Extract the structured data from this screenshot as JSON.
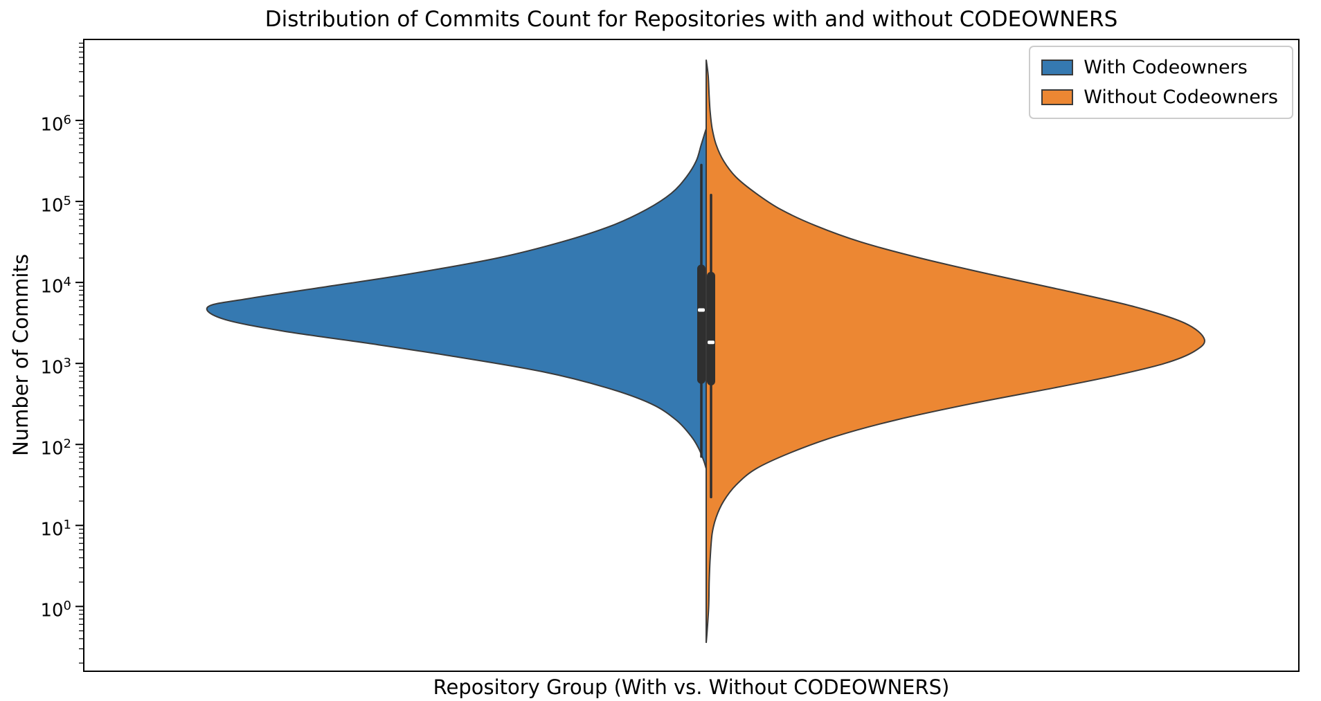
{
  "chart_data": {
    "type": "violin",
    "title": "Distribution of Commits Count for Repositories with and without CODEOWNERS",
    "xlabel": "Repository Group (With vs. Without CODEOWNERS)",
    "ylabel": "Number of Commits",
    "yscale": "log",
    "ylim_log10": [
      -0.8,
      7.0
    ],
    "ytick_exponents": [
      0,
      1,
      2,
      3,
      4,
      5,
      6
    ],
    "grid": false,
    "violin_halfwidth_frac": 0.41,
    "legend": {
      "position": "upper right",
      "items": [
        {
          "label": "With Codeowners",
          "color": "#3579b1"
        },
        {
          "label": "Without Codeowners",
          "color": "#ec8733"
        }
      ]
    },
    "series": [
      {
        "name": "With Codeowners",
        "side": "left",
        "color": "#3579b1",
        "edge_color": "#3a3a3a",
        "profile": [
          [
            5.9,
            0.0
          ],
          [
            5.7,
            0.01
          ],
          [
            5.5,
            0.02
          ],
          [
            5.3,
            0.04
          ],
          [
            5.1,
            0.07
          ],
          [
            4.9,
            0.12
          ],
          [
            4.7,
            0.19
          ],
          [
            4.5,
            0.29
          ],
          [
            4.3,
            0.42
          ],
          [
            4.1,
            0.6
          ],
          [
            3.95,
            0.76
          ],
          [
            3.8,
            0.92
          ],
          [
            3.7,
            1.0
          ],
          [
            3.55,
            0.97
          ],
          [
            3.4,
            0.85
          ],
          [
            3.25,
            0.68
          ],
          [
            3.1,
            0.52
          ],
          [
            2.9,
            0.33
          ],
          [
            2.7,
            0.2
          ],
          [
            2.5,
            0.11
          ],
          [
            2.3,
            0.06
          ],
          [
            2.1,
            0.03
          ],
          [
            1.95,
            0.015
          ],
          [
            1.8,
            0.005
          ],
          [
            1.7,
            0.0
          ]
        ],
        "box": {
          "whisker_low_log10": 1.85,
          "q1_log10": 2.8,
          "median_log10": 3.66,
          "q3_log10": 4.17,
          "whisker_high_log10": 5.45,
          "median_commits_approx": 4600
        }
      },
      {
        "name": "Without Codeowners",
        "side": "right",
        "color": "#ec8733",
        "edge_color": "#3a3a3a",
        "profile": [
          [
            6.75,
            0.0
          ],
          [
            6.55,
            0.004
          ],
          [
            6.3,
            0.006
          ],
          [
            6.1,
            0.008
          ],
          [
            5.9,
            0.012
          ],
          [
            5.7,
            0.02
          ],
          [
            5.5,
            0.035
          ],
          [
            5.3,
            0.06
          ],
          [
            5.1,
            0.1
          ],
          [
            4.9,
            0.15
          ],
          [
            4.7,
            0.22
          ],
          [
            4.5,
            0.31
          ],
          [
            4.3,
            0.43
          ],
          [
            4.1,
            0.57
          ],
          [
            3.9,
            0.72
          ],
          [
            3.7,
            0.86
          ],
          [
            3.5,
            0.96
          ],
          [
            3.3,
            1.0
          ],
          [
            3.15,
            0.98
          ],
          [
            3.0,
            0.92
          ],
          [
            2.85,
            0.82
          ],
          [
            2.7,
            0.7
          ],
          [
            2.5,
            0.53
          ],
          [
            2.3,
            0.38
          ],
          [
            2.1,
            0.26
          ],
          [
            1.9,
            0.17
          ],
          [
            1.7,
            0.1
          ],
          [
            1.5,
            0.06
          ],
          [
            1.3,
            0.035
          ],
          [
            1.1,
            0.02
          ],
          [
            0.9,
            0.012
          ],
          [
            0.6,
            0.008
          ],
          [
            0.3,
            0.006
          ],
          [
            0.0,
            0.005
          ],
          [
            -0.3,
            0.002
          ],
          [
            -0.45,
            0.0
          ]
        ],
        "box": {
          "whisker_low_log10": 1.35,
          "q1_log10": 2.78,
          "median_log10": 3.26,
          "q3_log10": 4.08,
          "whisker_high_log10": 5.08,
          "median_commits_approx": 1800
        }
      }
    ]
  }
}
